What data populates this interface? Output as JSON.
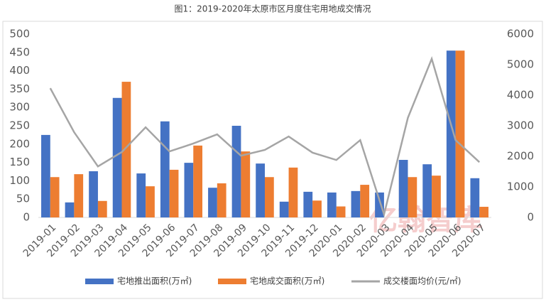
{
  "chart_data": {
    "type": "combo",
    "title": "图1：2019-2020年太原市区月度住宅用地成交情况",
    "watermark": "亿翰智库",
    "categories": [
      "2019-01",
      "2019-02",
      "2019-03",
      "2019-04",
      "2019-05",
      "2019-06",
      "2019-07",
      "2019-08",
      "2019-09",
      "2019-10",
      "2019-11",
      "2019-12",
      "2020-01",
      "2020-02",
      "2020-03",
      "2020-04",
      "2020-05",
      "2020-06",
      "2020-07"
    ],
    "series": [
      {
        "name": "宅地推出面积(万㎡)",
        "type": "bar",
        "color": "#4472c4",
        "values": [
          225,
          41,
          126,
          326,
          120,
          262,
          149,
          81,
          250,
          147,
          43,
          70,
          68,
          72,
          68,
          157,
          145,
          455,
          107
        ]
      },
      {
        "name": "宅地成交面积(万㎡)",
        "type": "bar",
        "color": "#ed7d31",
        "values": [
          110,
          118,
          45,
          370,
          85,
          130,
          196,
          93,
          180,
          110,
          136,
          46,
          30,
          89,
          0,
          110,
          114,
          455,
          29
        ]
      },
      {
        "name": "成交楼面均价(元/㎡)",
        "type": "line",
        "color": "#a5a5a5",
        "axis": "y2",
        "values": [
          4230,
          2790,
          1670,
          2140,
          2950,
          2160,
          2420,
          2720,
          2020,
          2210,
          2650,
          2120,
          1880,
          2530,
          100,
          3260,
          5190,
          2530,
          1810
        ]
      }
    ],
    "ylim": [
      0,
      500
    ],
    "yticks": [
      0,
      50,
      100,
      150,
      200,
      250,
      300,
      350,
      400,
      450,
      500
    ],
    "y2lim": [
      0,
      6000
    ],
    "y2ticks": [
      0,
      1000,
      2000,
      3000,
      4000,
      5000,
      6000
    ],
    "legend": "bottom"
  }
}
